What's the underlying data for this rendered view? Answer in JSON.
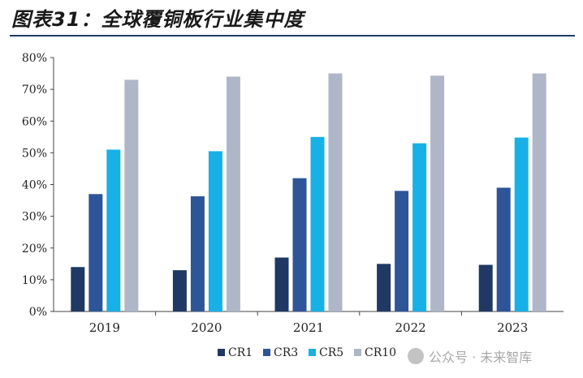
{
  "title": "图表31：全球覆铜板行业集中度",
  "watermark": "公众号 · 未来智库",
  "chart_data": {
    "type": "bar",
    "categories": [
      "2019",
      "2020",
      "2021",
      "2022",
      "2023"
    ],
    "series": [
      {
        "name": "CR1",
        "color": "#1f3864",
        "values": [
          14,
          13,
          17,
          15,
          14.7
        ]
      },
      {
        "name": "CR3",
        "color": "#2e5597",
        "values": [
          37,
          36.3,
          42,
          38,
          39
        ]
      },
      {
        "name": "CR5",
        "color": "#17b1e8",
        "values": [
          51,
          50.5,
          55,
          53,
          54.8
        ]
      },
      {
        "name": "CR10",
        "color": "#aeb6c8",
        "values": [
          73,
          74,
          75,
          74.3,
          75
        ]
      }
    ],
    "ylim": [
      0,
      80
    ],
    "yticks": [
      "0%",
      "10%",
      "20%",
      "30%",
      "40%",
      "50%",
      "60%",
      "70%",
      "80%"
    ],
    "xlabel": "",
    "ylabel": "",
    "grid": false,
    "legend_position": "bottom"
  }
}
